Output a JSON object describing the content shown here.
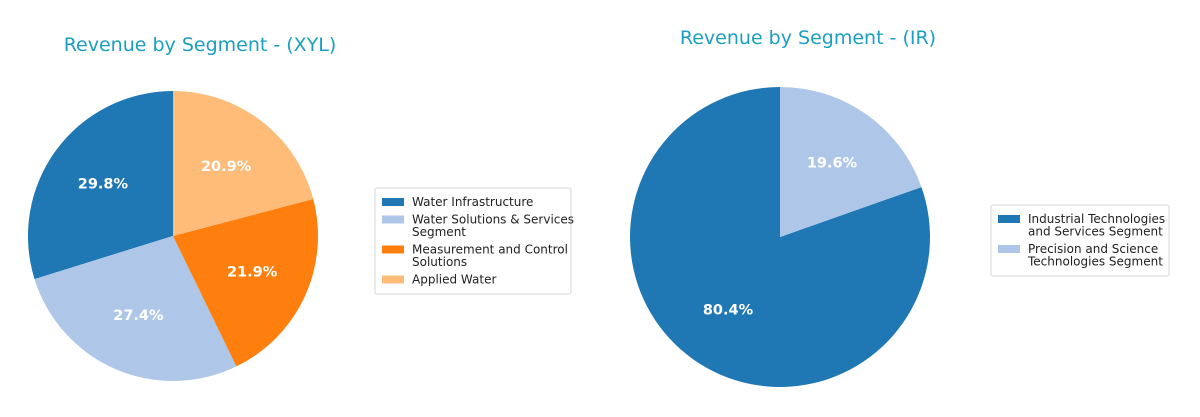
{
  "chart_data": [
    {
      "type": "pie",
      "title": "Revenue by Segment - (XYL)",
      "categories": [
        "Water Infrastructure",
        "Water Solutions & Services Segment",
        "Measurement and Control Solutions",
        "Applied Water"
      ],
      "legend_lines": [
        [
          "Water Infrastructure"
        ],
        [
          "Water Solutions & Services",
          "Segment"
        ],
        [
          "Measurement and Control",
          "Solutions"
        ],
        [
          "Applied Water"
        ]
      ],
      "values": [
        29.8,
        27.4,
        21.9,
        20.9
      ],
      "labels": [
        "29.8%",
        "27.4%",
        "21.9%",
        "20.9%"
      ],
      "colors": [
        "#1f77b4",
        "#aec7e8",
        "#ff7f0e",
        "#ffbb78"
      ],
      "start_angle_deg": 90,
      "direction": "counterclockwise",
      "legend_placement": "right"
    },
    {
      "type": "pie",
      "title": "Revenue by Segment - (IR)",
      "categories": [
        "Industrial Technologies and Services Segment",
        "Precision and Science Technologies Segment"
      ],
      "legend_lines": [
        [
          "Industrial Technologies",
          "and Services Segment"
        ],
        [
          "Precision and Science",
          "Technologies Segment"
        ]
      ],
      "values": [
        80.4,
        19.6
      ],
      "labels": [
        "80.4%",
        "19.6%"
      ],
      "colors": [
        "#1f77b4",
        "#aec7e8"
      ],
      "start_angle_deg": 90,
      "direction": "counterclockwise",
      "legend_placement": "right"
    }
  ]
}
